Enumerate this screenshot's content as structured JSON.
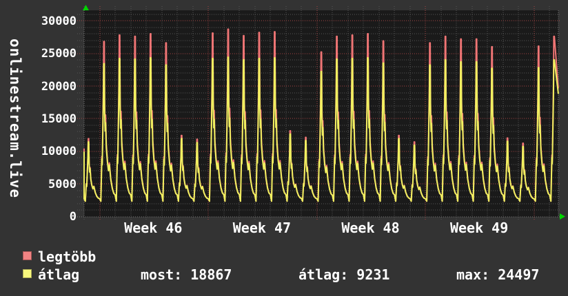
{
  "window_bg": "#333333",
  "plot_bg": "#1a1a1a",
  "chart_data": {
    "type": "line",
    "title": "",
    "ylabel": "onlinestream.live",
    "xlabel": "",
    "x_axis": {
      "labels": [
        "Week 46",
        "Week 47",
        "Week 48",
        "Week 49"
      ],
      "unit": "week",
      "minor_grid": "day"
    },
    "y_ticks": [
      0,
      5000,
      10000,
      15000,
      20000,
      25000,
      30000
    ],
    "ylim": [
      0,
      31700
    ],
    "grid": {
      "style": "dotted",
      "major_color": "#a84444",
      "minor_color": "#565656",
      "edge_color": "#787878"
    },
    "night_valley": 2400,
    "series": [
      {
        "name": "legtöbb",
        "color": "#f07575",
        "swatch_color": "#f08383",
        "daily_peaks": [
          12000,
          26900,
          27900,
          27700,
          28100,
          26700,
          12500,
          11900,
          28200,
          28800,
          27800,
          28300,
          28400,
          13200,
          12200,
          25300,
          27700,
          27900,
          28100,
          27000,
          12500,
          11500,
          26700,
          27700,
          27300,
          27300,
          26100,
          12100,
          11300,
          26200,
          27700
        ]
      },
      {
        "name": "átlag",
        "color": "#f0f060",
        "swatch_color": "#f8f87d",
        "daily_peaks": [
          11500,
          23500,
          24300,
          24200,
          24400,
          23300,
          12000,
          11400,
          24300,
          24500,
          24100,
          24300,
          24400,
          12700,
          11700,
          22300,
          24200,
          24300,
          24400,
          23600,
          12000,
          11000,
          23300,
          24100,
          23800,
          23800,
          22800,
          11600,
          10800,
          22900,
          24100
        ]
      }
    ],
    "current": {
      "legtobb": 19700,
      "atlag": 18867
    },
    "stats": {
      "most": 18867,
      "átlag": 9231,
      "max": 24497
    },
    "legend_position": "bottom-left",
    "arrow_color": "#00d400"
  },
  "legend": {
    "items": [
      {
        "label": "legtöbb",
        "color": "#f08383",
        "border": "#a85555"
      },
      {
        "label": "átlag",
        "color": "#f8f87d",
        "border": "#a8a855"
      }
    ],
    "stats": [
      {
        "label": "most",
        "value": "18867",
        "text": "most: 18867"
      },
      {
        "label": "átlag",
        "value": "9231",
        "text": "átlag: 9231"
      },
      {
        "label": "max",
        "value": "24497",
        "text": "max: 24497"
      }
    ]
  }
}
